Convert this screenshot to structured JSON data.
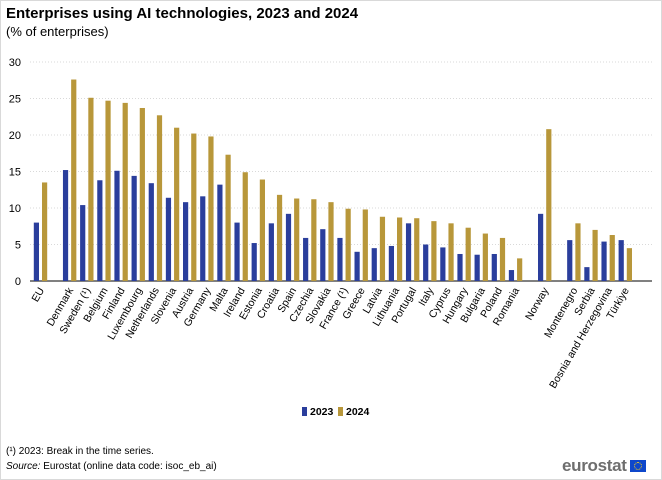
{
  "header": {
    "title": "Enterprises using AI technologies, 2023 and 2024",
    "subtitle": "(% of enterprises)"
  },
  "footer": {
    "footnote": "(¹) 2023: Break in the time series.",
    "source_label": "Source:",
    "source_text": " Eurostat (online data code: isoc_eb_ai)",
    "logo_text": "eurostat"
  },
  "colors": {
    "series_2023": "#2a3e9c",
    "series_2024": "#b8973a",
    "grid": "#d9d9d9",
    "axis": "#000000"
  },
  "chart_data": {
    "type": "bar",
    "title": "Enterprises using AI technologies, 2023 and 2024",
    "subtitle": "(% of enterprises)",
    "ylabel": "",
    "xlabel": "",
    "ylim": [
      0,
      30
    ],
    "yticks": [
      "0",
      "5",
      "10",
      "15",
      "20",
      "25",
      "30"
    ],
    "grid": true,
    "legend_position": "bottom-center",
    "category_groups": [
      [
        "EU"
      ],
      [
        "Denmark",
        "Sweden (¹)",
        "Belgium",
        "Finland",
        "Luxembourg",
        "Netherlands",
        "Slovenia",
        "Austria",
        "Germany",
        "Malta",
        "Ireland",
        "Estonia",
        "Croatia",
        "Spain",
        "Czechia",
        "Slovakia",
        "France (¹)",
        "Greece",
        "Latvia",
        "Lithuania",
        "Portugal",
        "Italy",
        "Cyprus",
        "Hungary",
        "Bulgaria",
        "Poland",
        "Romania"
      ],
      [
        "Norway"
      ],
      [
        "Montenegro",
        "Serbia",
        "Bosnia and Herzegovina",
        "Türkiye"
      ]
    ],
    "categories": [
      "EU",
      "Denmark",
      "Sweden (¹)",
      "Belgium",
      "Finland",
      "Luxembourg",
      "Netherlands",
      "Slovenia",
      "Austria",
      "Germany",
      "Malta",
      "Ireland",
      "Estonia",
      "Croatia",
      "Spain",
      "Czechia",
      "Slovakia",
      "France (¹)",
      "Greece",
      "Latvia",
      "Lithuania",
      "Portugal",
      "Italy",
      "Cyprus",
      "Hungary",
      "Bulgaria",
      "Poland",
      "Romania",
      "Norway",
      "Montenegro",
      "Serbia",
      "Bosnia and Herzegovina",
      "Türkiye"
    ],
    "series": [
      {
        "name": "2023",
        "values": [
          8.0,
          15.2,
          10.4,
          13.8,
          15.1,
          14.4,
          13.4,
          11.4,
          10.8,
          11.6,
          13.2,
          8.0,
          5.2,
          7.9,
          9.2,
          5.9,
          7.1,
          5.9,
          4.0,
          4.5,
          4.8,
          7.9,
          5.0,
          4.6,
          3.7,
          3.6,
          3.7,
          1.5,
          9.2,
          5.6,
          1.9,
          5.4,
          5.6
        ]
      },
      {
        "name": "2024",
        "values": [
          13.5,
          27.6,
          25.1,
          24.7,
          24.4,
          23.7,
          22.7,
          21.0,
          20.2,
          19.8,
          17.3,
          14.9,
          13.9,
          11.8,
          11.3,
          11.2,
          10.8,
          9.9,
          9.8,
          8.8,
          8.7,
          8.6,
          8.2,
          7.9,
          7.3,
          6.5,
          5.9,
          3.1,
          20.8,
          7.9,
          7.0,
          6.3,
          4.5
        ]
      }
    ]
  }
}
